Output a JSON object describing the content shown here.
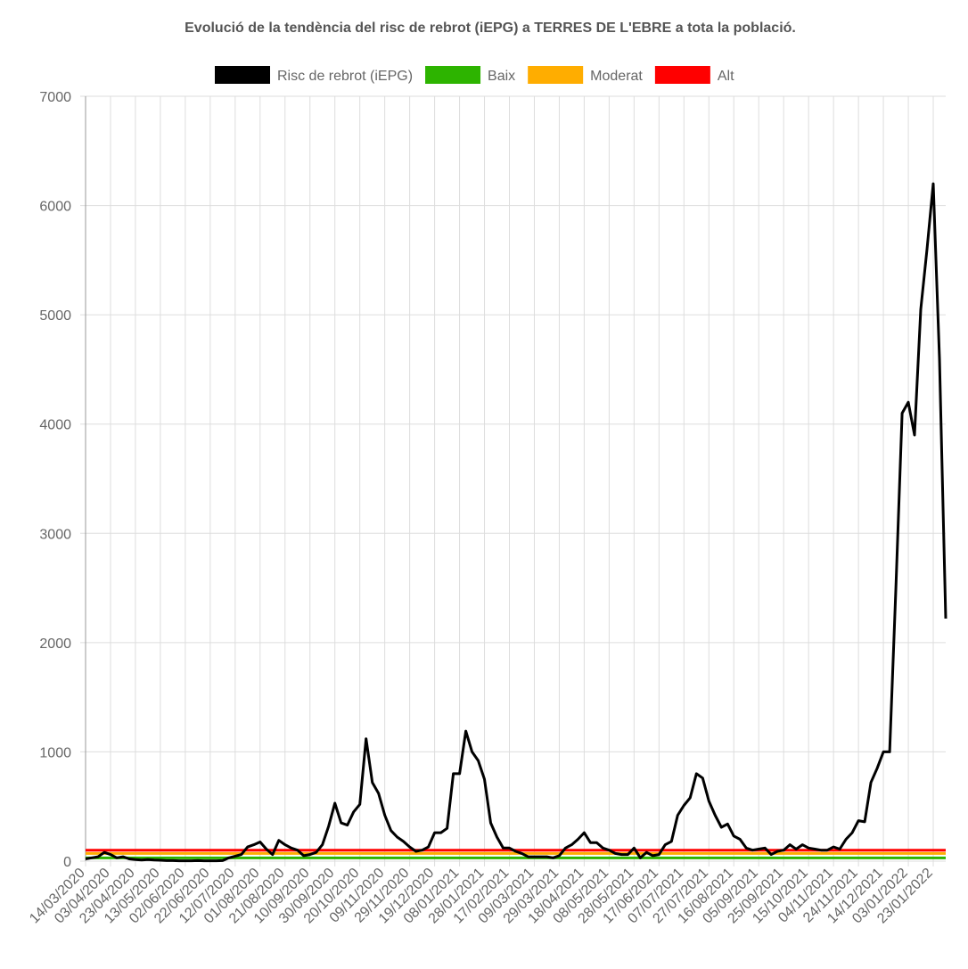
{
  "chart_data": {
    "type": "line",
    "title": "Evolució de la tendència del risc de rebrot (iEPG) a TERRES DE L'EBRE a tota la població.",
    "categories": [
      "14/03/2020",
      null,
      null,
      null,
      "03/04/2020",
      null,
      null,
      null,
      "23/04/2020",
      null,
      null,
      null,
      "13/05/2020",
      null,
      null,
      null,
      "02/06/2020",
      null,
      null,
      null,
      "22/06/2020",
      null,
      null,
      null,
      "12/07/2020",
      null,
      null,
      null,
      "01/08/2020",
      null,
      null,
      null,
      "21/08/2020",
      null,
      null,
      null,
      "10/09/2020",
      null,
      null,
      null,
      "30/09/2020",
      null,
      null,
      null,
      "20/10/2020",
      null,
      null,
      null,
      "09/11/2020",
      null,
      null,
      null,
      "29/11/2020",
      null,
      null,
      null,
      "19/12/2020",
      null,
      null,
      null,
      "08/01/2021",
      null,
      null,
      null,
      "28/01/2021",
      null,
      null,
      null,
      "17/02/2021",
      null,
      null,
      null,
      "09/03/2021",
      null,
      null,
      null,
      "29/03/2021",
      null,
      null,
      null,
      "18/04/2021",
      null,
      null,
      null,
      "08/05/2021",
      null,
      null,
      null,
      "28/05/2021",
      null,
      null,
      null,
      "17/06/2021",
      null,
      null,
      null,
      "07/07/2021",
      null,
      null,
      null,
      "27/07/2021",
      null,
      null,
      null,
      "16/08/2021",
      null,
      null,
      null,
      "05/09/2021",
      null,
      null,
      null,
      "25/09/2021",
      null,
      null,
      null,
      "15/10/2021",
      null,
      null,
      null,
      "04/11/2021",
      null,
      null,
      null,
      "24/11/2021",
      null,
      null,
      null,
      "14/12/2021",
      null,
      null,
      null,
      "03/01/2022",
      null,
      null,
      null,
      "23/01/2022",
      null,
      null
    ],
    "series": [
      {
        "name": "Risc de rebrot (iEPG)",
        "color": "#000000",
        "values": [
          20,
          30,
          40,
          80,
          60,
          30,
          40,
          20,
          15,
          10,
          15,
          10,
          8,
          5,
          5,
          3,
          3,
          3,
          5,
          3,
          3,
          3,
          5,
          30,
          45,
          60,
          130,
          150,
          175,
          110,
          60,
          190,
          150,
          120,
          100,
          50,
          60,
          80,
          150,
          320,
          530,
          350,
          330,
          450,
          520,
          1120,
          720,
          620,
          420,
          280,
          220,
          180,
          130,
          90,
          100,
          130,
          260,
          260,
          300,
          800,
          800,
          1190,
          1000,
          920,
          750,
          350,
          220,
          120,
          120,
          90,
          70,
          40,
          40,
          40,
          40,
          30,
          50,
          120,
          150,
          200,
          260,
          170,
          170,
          120,
          100,
          70,
          60,
          60,
          120,
          30,
          80,
          50,
          60,
          150,
          180,
          420,
          510,
          580,
          800,
          760,
          550,
          420,
          310,
          340,
          230,
          200,
          120,
          100,
          110,
          120,
          60,
          90,
          100,
          150,
          110,
          150,
          120,
          110,
          100,
          100,
          130,
          110,
          200,
          260,
          370,
          360,
          720,
          850,
          1000,
          1000,
          2500,
          4100,
          4200,
          3900,
          5050,
          5600,
          6200,
          4600,
          2220
        ]
      }
    ],
    "reference_lines": [
      {
        "name": "Baix",
        "color": "#2db400",
        "value": 30
      },
      {
        "name": "Moderat",
        "color": "#ffad00",
        "value": 70
      },
      {
        "name": "Alt",
        "color": "#ff0000",
        "value": 100
      }
    ],
    "ylim": [
      0,
      7000
    ],
    "yticks": [
      0,
      1000,
      2000,
      3000,
      4000,
      5000,
      6000,
      7000
    ],
    "grid": true
  }
}
